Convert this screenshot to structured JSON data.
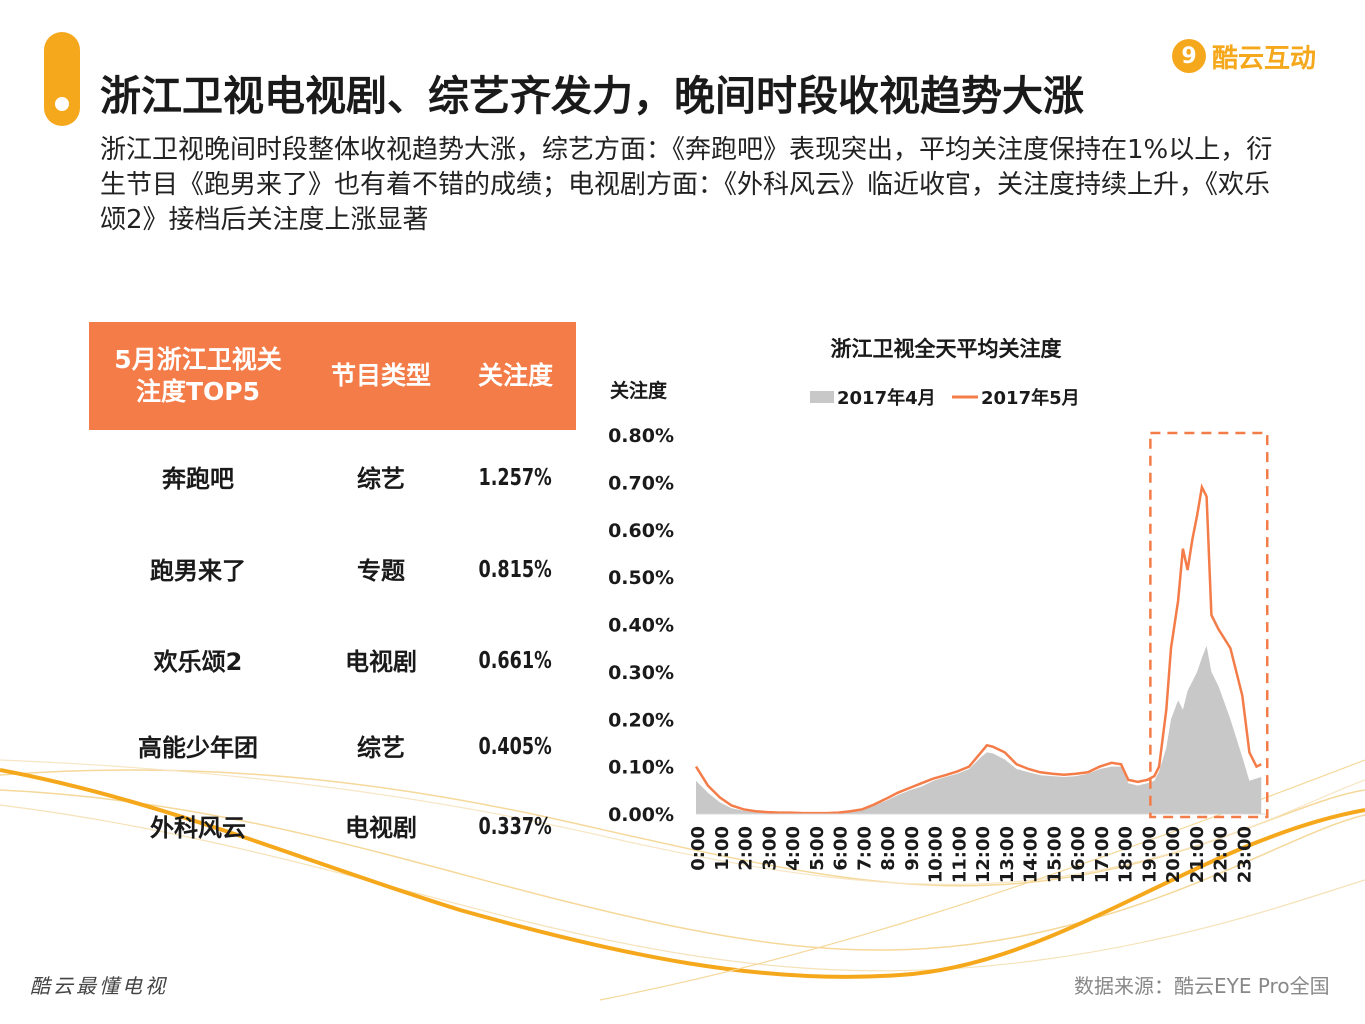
{
  "header": {
    "title": "浙江卫视电视剧、综艺齐发力，晚间时段收视趋势大涨",
    "subtitle": "浙江卫视晚间时段整体收视趋势大涨，综艺方面：《奔跑吧》表现突出，平均关注度保持在1%以上，衍生节目《跑男来了》也有着不错的成绩；电视剧方面：《外科风云》临近收官，关注度持续上升，《欢乐颂2》接档后关注度上涨显著"
  },
  "logo": {
    "mark": "9",
    "text": "酷云互动"
  },
  "table": {
    "headers": [
      "5月浙江卫视关注度TOP5",
      "节目类型",
      "关注度"
    ],
    "rows": [
      {
        "name": "奔跑吧",
        "type": "综艺",
        "value": "1.257%"
      },
      {
        "name": "跑男来了",
        "type": "专题",
        "value": "0.815%"
      },
      {
        "name": "欢乐颂2",
        "type": "电视剧",
        "value": "0.661%"
      },
      {
        "name": "高能少年团",
        "type": "综艺",
        "value": "0.405%"
      },
      {
        "name": "外科风云",
        "type": "电视剧",
        "value": "0.337%"
      }
    ]
  },
  "chart_data": {
    "type": "area+line",
    "title": "浙江卫视全天平均关注度",
    "ylabel": "关注度",
    "ylim": [
      0,
      0.8
    ],
    "yticks": [
      "0.00%",
      "0.10%",
      "0.20%",
      "0.30%",
      "0.40%",
      "0.50%",
      "0.60%",
      "0.70%",
      "0.80%"
    ],
    "xticks": [
      "0:00",
      "1:00",
      "2:00",
      "3:00",
      "4:00",
      "5:00",
      "6:00",
      "7:00",
      "8:00",
      "9:00",
      "10:00",
      "11:00",
      "12:00",
      "13:00",
      "14:00",
      "15:00",
      "16:00",
      "17:00",
      "18:00",
      "19:00",
      "20:00",
      "21:00",
      "22:00",
      "23:00"
    ],
    "x": [
      0,
      0.5,
      1,
      1.5,
      2,
      2.5,
      3,
      3.5,
      4,
      4.5,
      5,
      5.5,
      6,
      6.5,
      7,
      7.5,
      8,
      8.5,
      9,
      9.5,
      10,
      10.5,
      11,
      11.5,
      12,
      12.25,
      12.5,
      13,
      13.5,
      14,
      14.5,
      15,
      15.5,
      16,
      16.5,
      17,
      17.5,
      17.9,
      18.2,
      18.6,
      19,
      19.3,
      19.5,
      19.8,
      20,
      20.3,
      20.5,
      20.7,
      20.9,
      21.1,
      21.3,
      21.5,
      21.7,
      22,
      22.5,
      23,
      23.3,
      23.6,
      23.8
    ],
    "series": [
      {
        "name": "2017年4月",
        "kind": "area",
        "color": "#c8c8c8",
        "values": [
          0.07,
          0.045,
          0.025,
          0.012,
          0.007,
          0.004,
          0.003,
          0.002,
          0.002,
          0.002,
          0.002,
          0.002,
          0.003,
          0.006,
          0.01,
          0.018,
          0.028,
          0.04,
          0.05,
          0.058,
          0.07,
          0.078,
          0.085,
          0.095,
          0.12,
          0.13,
          0.128,
          0.115,
          0.095,
          0.088,
          0.082,
          0.08,
          0.078,
          0.08,
          0.085,
          0.095,
          0.1,
          0.1,
          0.065,
          0.06,
          0.065,
          0.07,
          0.09,
          0.14,
          0.2,
          0.24,
          0.22,
          0.26,
          0.28,
          0.3,
          0.33,
          0.355,
          0.3,
          0.27,
          0.2,
          0.12,
          0.07,
          0.075,
          0.078
        ]
      },
      {
        "name": "2017年5月",
        "kind": "line",
        "color": "#f47c48",
        "values": [
          0.1,
          0.06,
          0.035,
          0.018,
          0.01,
          0.006,
          0.004,
          0.003,
          0.003,
          0.002,
          0.002,
          0.002,
          0.003,
          0.006,
          0.01,
          0.02,
          0.032,
          0.045,
          0.055,
          0.065,
          0.075,
          0.082,
          0.09,
          0.1,
          0.13,
          0.145,
          0.142,
          0.13,
          0.105,
          0.095,
          0.088,
          0.085,
          0.083,
          0.085,
          0.088,
          0.1,
          0.108,
          0.105,
          0.072,
          0.068,
          0.072,
          0.08,
          0.1,
          0.22,
          0.35,
          0.45,
          0.56,
          0.515,
          0.58,
          0.63,
          0.69,
          0.67,
          0.42,
          0.39,
          0.35,
          0.25,
          0.13,
          0.1,
          0.105
        ]
      }
    ],
    "highlight": {
      "x_from": 19.3,
      "x_to": 23.8,
      "color": "#f47c48"
    }
  },
  "footer": {
    "left": "酷云最懂电视",
    "right": "数据来源：酷云EYE Pro全国"
  },
  "colors": {
    "accent": "#f5a81c",
    "orange": "#f47c48",
    "gray": "#c8c8c8"
  }
}
